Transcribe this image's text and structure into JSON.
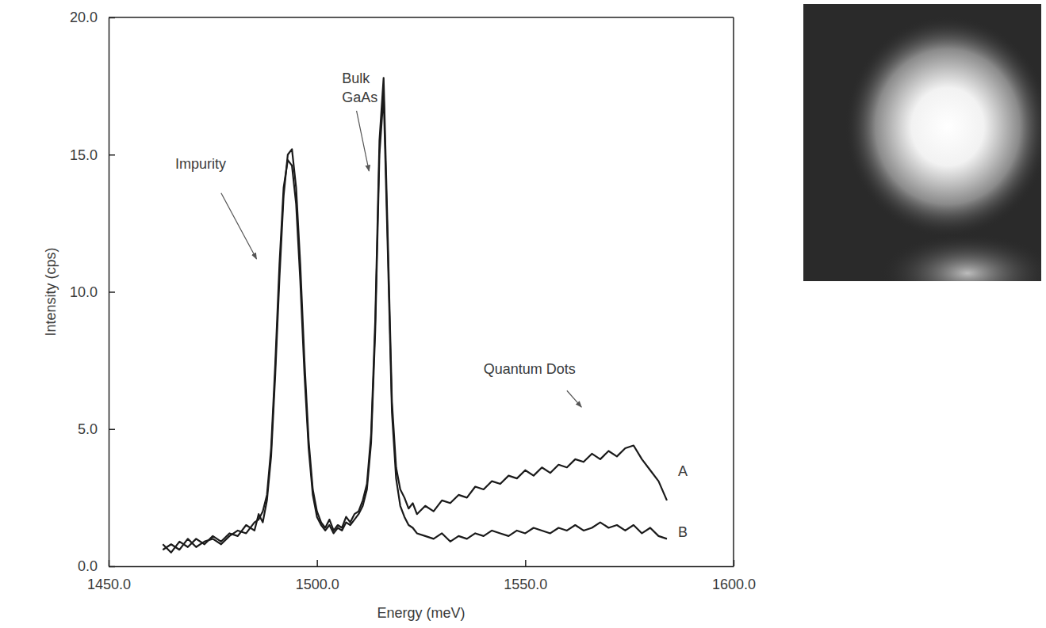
{
  "chart_data": {
    "type": "line",
    "xlabel": "Energy (meV)",
    "ylabel": "Intensity (cps)",
    "xlim": [
      1450,
      1600
    ],
    "ylim": [
      0,
      20
    ],
    "xticks": [
      {
        "value": 1450,
        "label": "1450.0"
      },
      {
        "value": 1500,
        "label": "1500.0"
      },
      {
        "value": 1550,
        "label": "1550.0"
      },
      {
        "value": 1600,
        "label": "1600.0"
      }
    ],
    "yticks": [
      {
        "value": 0,
        "label": "0.0"
      },
      {
        "value": 5,
        "label": "5.0"
      },
      {
        "value": 10,
        "label": "10.0"
      },
      {
        "value": 15,
        "label": "15.0"
      },
      {
        "value": 20,
        "label": "20.0"
      }
    ],
    "x": [
      1463,
      1465,
      1467,
      1469,
      1471,
      1473,
      1475,
      1477,
      1479,
      1481,
      1483,
      1485,
      1486,
      1487,
      1488,
      1489,
      1490,
      1491,
      1492,
      1493,
      1494,
      1495,
      1496,
      1497,
      1498,
      1499,
      1500,
      1501,
      1502,
      1503,
      1504,
      1505,
      1506,
      1507,
      1508,
      1509,
      1510,
      1511,
      1512,
      1513,
      1514,
      1515,
      1516,
      1517,
      1518,
      1519,
      1520,
      1521,
      1522,
      1523,
      1524,
      1526,
      1528,
      1530,
      1532,
      1534,
      1536,
      1538,
      1540,
      1542,
      1544,
      1546,
      1548,
      1550,
      1552,
      1554,
      1556,
      1558,
      1560,
      1562,
      1564,
      1566,
      1568,
      1570,
      1572,
      1574,
      1576,
      1578,
      1580,
      1582,
      1584
    ],
    "series": [
      {
        "name": "A",
        "color": "#1a1a1a",
        "values": [
          0.8,
          0.5,
          0.9,
          0.7,
          1.0,
          0.8,
          1.1,
          0.9,
          1.2,
          1.1,
          1.5,
          1.3,
          1.9,
          1.6,
          2.4,
          4.0,
          7.0,
          10.5,
          13.5,
          15.0,
          15.2,
          13.8,
          11.0,
          7.5,
          4.6,
          2.8,
          2.0,
          1.6,
          1.4,
          1.7,
          1.3,
          1.5,
          1.4,
          1.8,
          1.6,
          1.9,
          2.0,
          2.4,
          3.0,
          4.8,
          9.0,
          15.5,
          17.8,
          12.0,
          6.0,
          3.6,
          2.8,
          2.5,
          2.1,
          2.3,
          1.9,
          2.2,
          2.0,
          2.4,
          2.3,
          2.6,
          2.5,
          2.9,
          2.8,
          3.1,
          3.0,
          3.3,
          3.2,
          3.5,
          3.3,
          3.6,
          3.4,
          3.7,
          3.6,
          3.9,
          3.8,
          4.1,
          3.9,
          4.2,
          4.0,
          4.3,
          4.4,
          3.9,
          3.5,
          3.1,
          2.4
        ]
      },
      {
        "name": "B",
        "color": "#1a1a1a",
        "values": [
          0.6,
          0.8,
          0.6,
          1.0,
          0.7,
          0.9,
          1.0,
          0.8,
          1.1,
          1.3,
          1.2,
          1.6,
          1.7,
          2.0,
          2.6,
          4.3,
          7.4,
          11.0,
          13.8,
          14.8,
          14.6,
          13.2,
          10.4,
          7.0,
          4.3,
          2.6,
          1.8,
          1.5,
          1.3,
          1.5,
          1.2,
          1.4,
          1.3,
          1.6,
          1.5,
          1.7,
          1.9,
          2.2,
          2.8,
          4.5,
          8.6,
          15.0,
          17.2,
          11.5,
          5.6,
          3.2,
          2.2,
          1.8,
          1.5,
          1.4,
          1.2,
          1.1,
          1.0,
          1.2,
          0.9,
          1.1,
          1.0,
          1.2,
          1.1,
          1.3,
          1.2,
          1.1,
          1.3,
          1.2,
          1.4,
          1.3,
          1.2,
          1.4,
          1.3,
          1.5,
          1.3,
          1.4,
          1.6,
          1.4,
          1.5,
          1.3,
          1.5,
          1.2,
          1.4,
          1.1,
          1.0
        ]
      }
    ],
    "annotations": [
      {
        "text": "Impurity"
      },
      {
        "text": "Bulk GaAs"
      },
      {
        "text": "Quantum Dots"
      }
    ]
  }
}
